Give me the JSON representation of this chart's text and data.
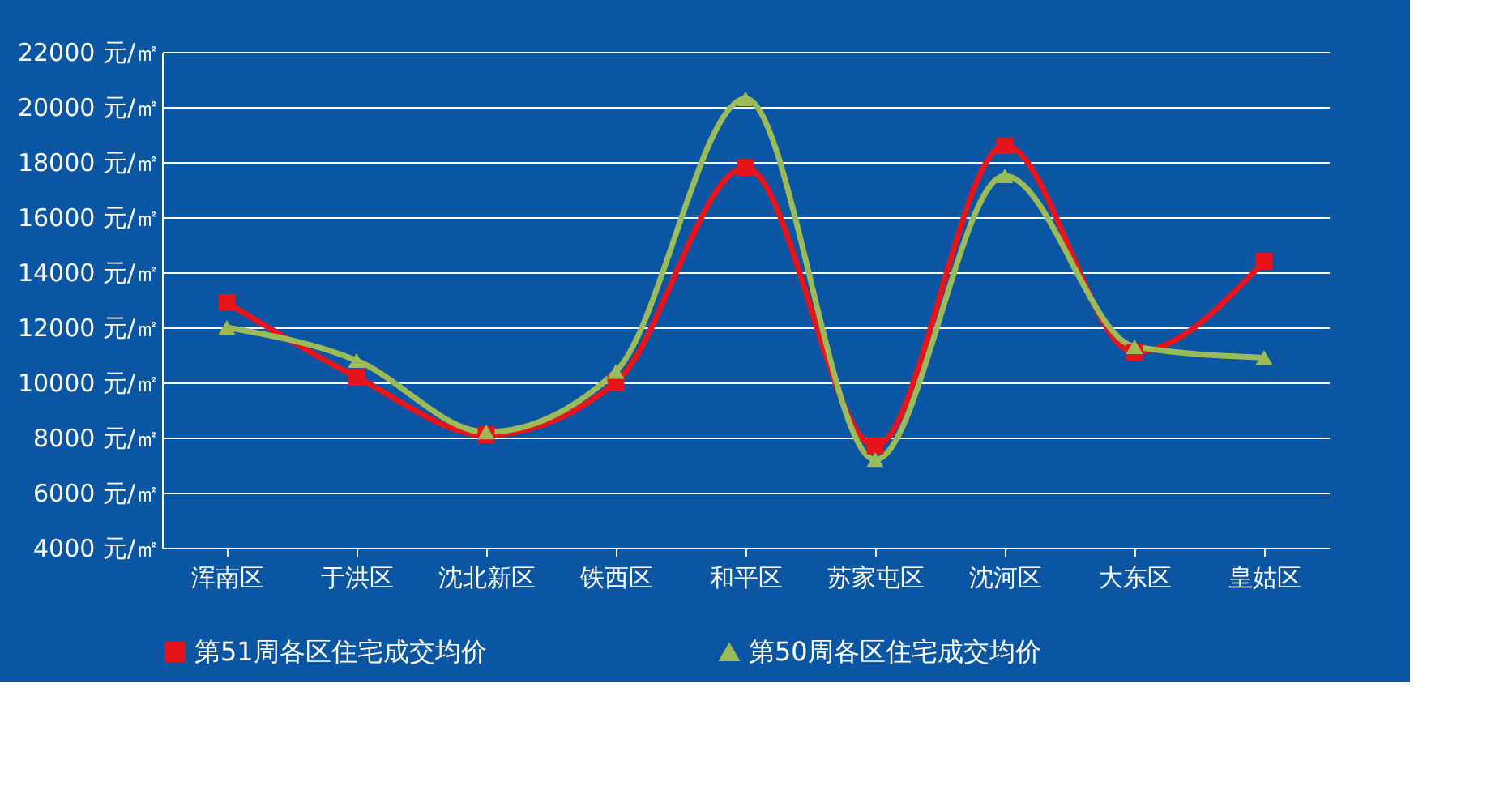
{
  "chart_data": {
    "type": "line",
    "categories": [
      "浑南区",
      "于洪区",
      "沈北新区",
      "铁西区",
      "和平区",
      "苏家屯区",
      "沈河区",
      "大东区",
      "皇姑区"
    ],
    "series": [
      {
        "name": "第51周各区住宅成交均价",
        "color": "#e8141b",
        "marker": "square",
        "values": [
          12900,
          10200,
          8100,
          10000,
          17800,
          7700,
          18600,
          11100,
          14400
        ]
      },
      {
        "name": "第50周各区住宅成交均价",
        "color": "#9bbb59",
        "marker": "triangle",
        "values": [
          12000,
          10800,
          8200,
          10400,
          20300,
          7200,
          17500,
          11300,
          10900
        ]
      }
    ],
    "ylim": [
      4000,
      22000
    ],
    "yticks": [
      {
        "value": 4000,
        "label": "4000 元/㎡"
      },
      {
        "value": 6000,
        "label": "6000 元/㎡"
      },
      {
        "value": 8000,
        "label": "8000 元/㎡"
      },
      {
        "value": 10000,
        "label": "10000 元/㎡"
      },
      {
        "value": 12000,
        "label": "12000 元/㎡"
      },
      {
        "value": 14000,
        "label": "14000 元/㎡"
      },
      {
        "value": 16000,
        "label": "16000 元/㎡"
      },
      {
        "value": 18000,
        "label": "18000 元/㎡"
      },
      {
        "value": 20000,
        "label": "20000 元/㎡"
      },
      {
        "value": 22000,
        "label": "22000 元/㎡"
      }
    ],
    "grid": "y",
    "legend": "bottom",
    "line_style": "solid"
  }
}
